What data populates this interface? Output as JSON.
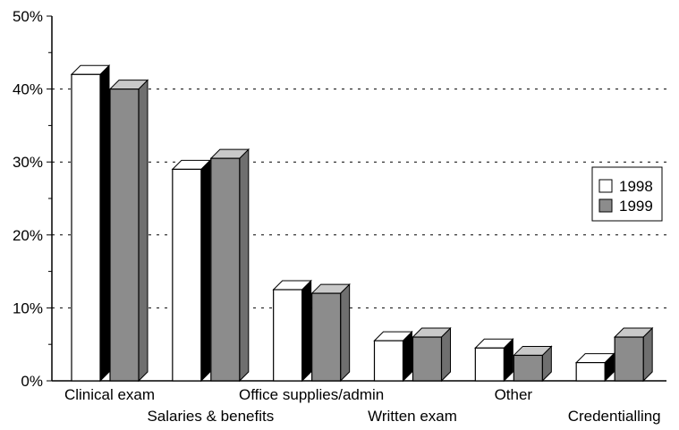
{
  "chart_data": {
    "type": "bar",
    "title": "",
    "xlabel": "",
    "ylabel": "",
    "categories": [
      "Clinical exam",
      "Salaries & benefits",
      "Office supplies/admin",
      "Written exam",
      "Other",
      "Credentialling"
    ],
    "series": [
      {
        "name": "1998",
        "values": [
          42,
          29,
          12.5,
          5.5,
          4.5,
          2.5
        ]
      },
      {
        "name": "1999",
        "values": [
          40,
          30.5,
          12,
          6,
          3.5,
          6
        ]
      }
    ],
    "ylim": [
      0,
      50
    ],
    "yticks": [
      "0%",
      "10%",
      "20%",
      "30%",
      "40%",
      "50%"
    ],
    "grid": true,
    "legend_position": "right",
    "colors": {
      "1998": "#ffffff",
      "1999": "#8c8c8c",
      "edge": "#000000"
    }
  }
}
